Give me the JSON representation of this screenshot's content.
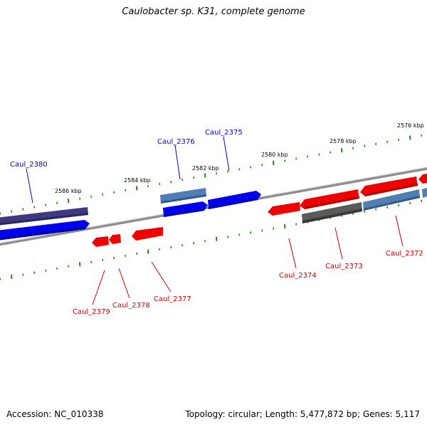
{
  "title": "Caulobacter sp. K31, complete genome",
  "footer": {
    "accession": "Accession: NC_010338",
    "topology": "Topology: circular; Length: 5,477,872 bp; Genes: 5,117"
  },
  "colors": {
    "forward_label": "#0000cc",
    "reverse_label": "#cc0000",
    "backbone": "#8c8c8c",
    "ticks": "#2f7d1f",
    "gene_blue": "#0000ee",
    "gene_steel": "#4f7fb5",
    "gene_navy": "#3f3a80",
    "gene_red": "#ee0000",
    "gene_gray": "#5a5a5a"
  },
  "axis": {
    "unit": "kbp",
    "kbp_labels": [
      {
        "kbp": 2576,
        "text": "2576 kbp"
      },
      {
        "kbp": 2578,
        "text": "2578 kbp"
      },
      {
        "kbp": 2580,
        "text": "2580 kbp"
      },
      {
        "kbp": 2582,
        "text": "2582 kbp"
      },
      {
        "kbp": 2584,
        "text": "2584 kbp"
      },
      {
        "kbp": 2586,
        "text": "2586 kbp"
      }
    ]
  },
  "gene_labels": {
    "forward": [
      "Caul_2380",
      "Caul_2376",
      "Caul_2375"
    ],
    "reverse": [
      "Caul_2379",
      "Caul_2378",
      "Caul_2377",
      "Caul_2374",
      "Caul_2373",
      "Caul_2372"
    ]
  }
}
